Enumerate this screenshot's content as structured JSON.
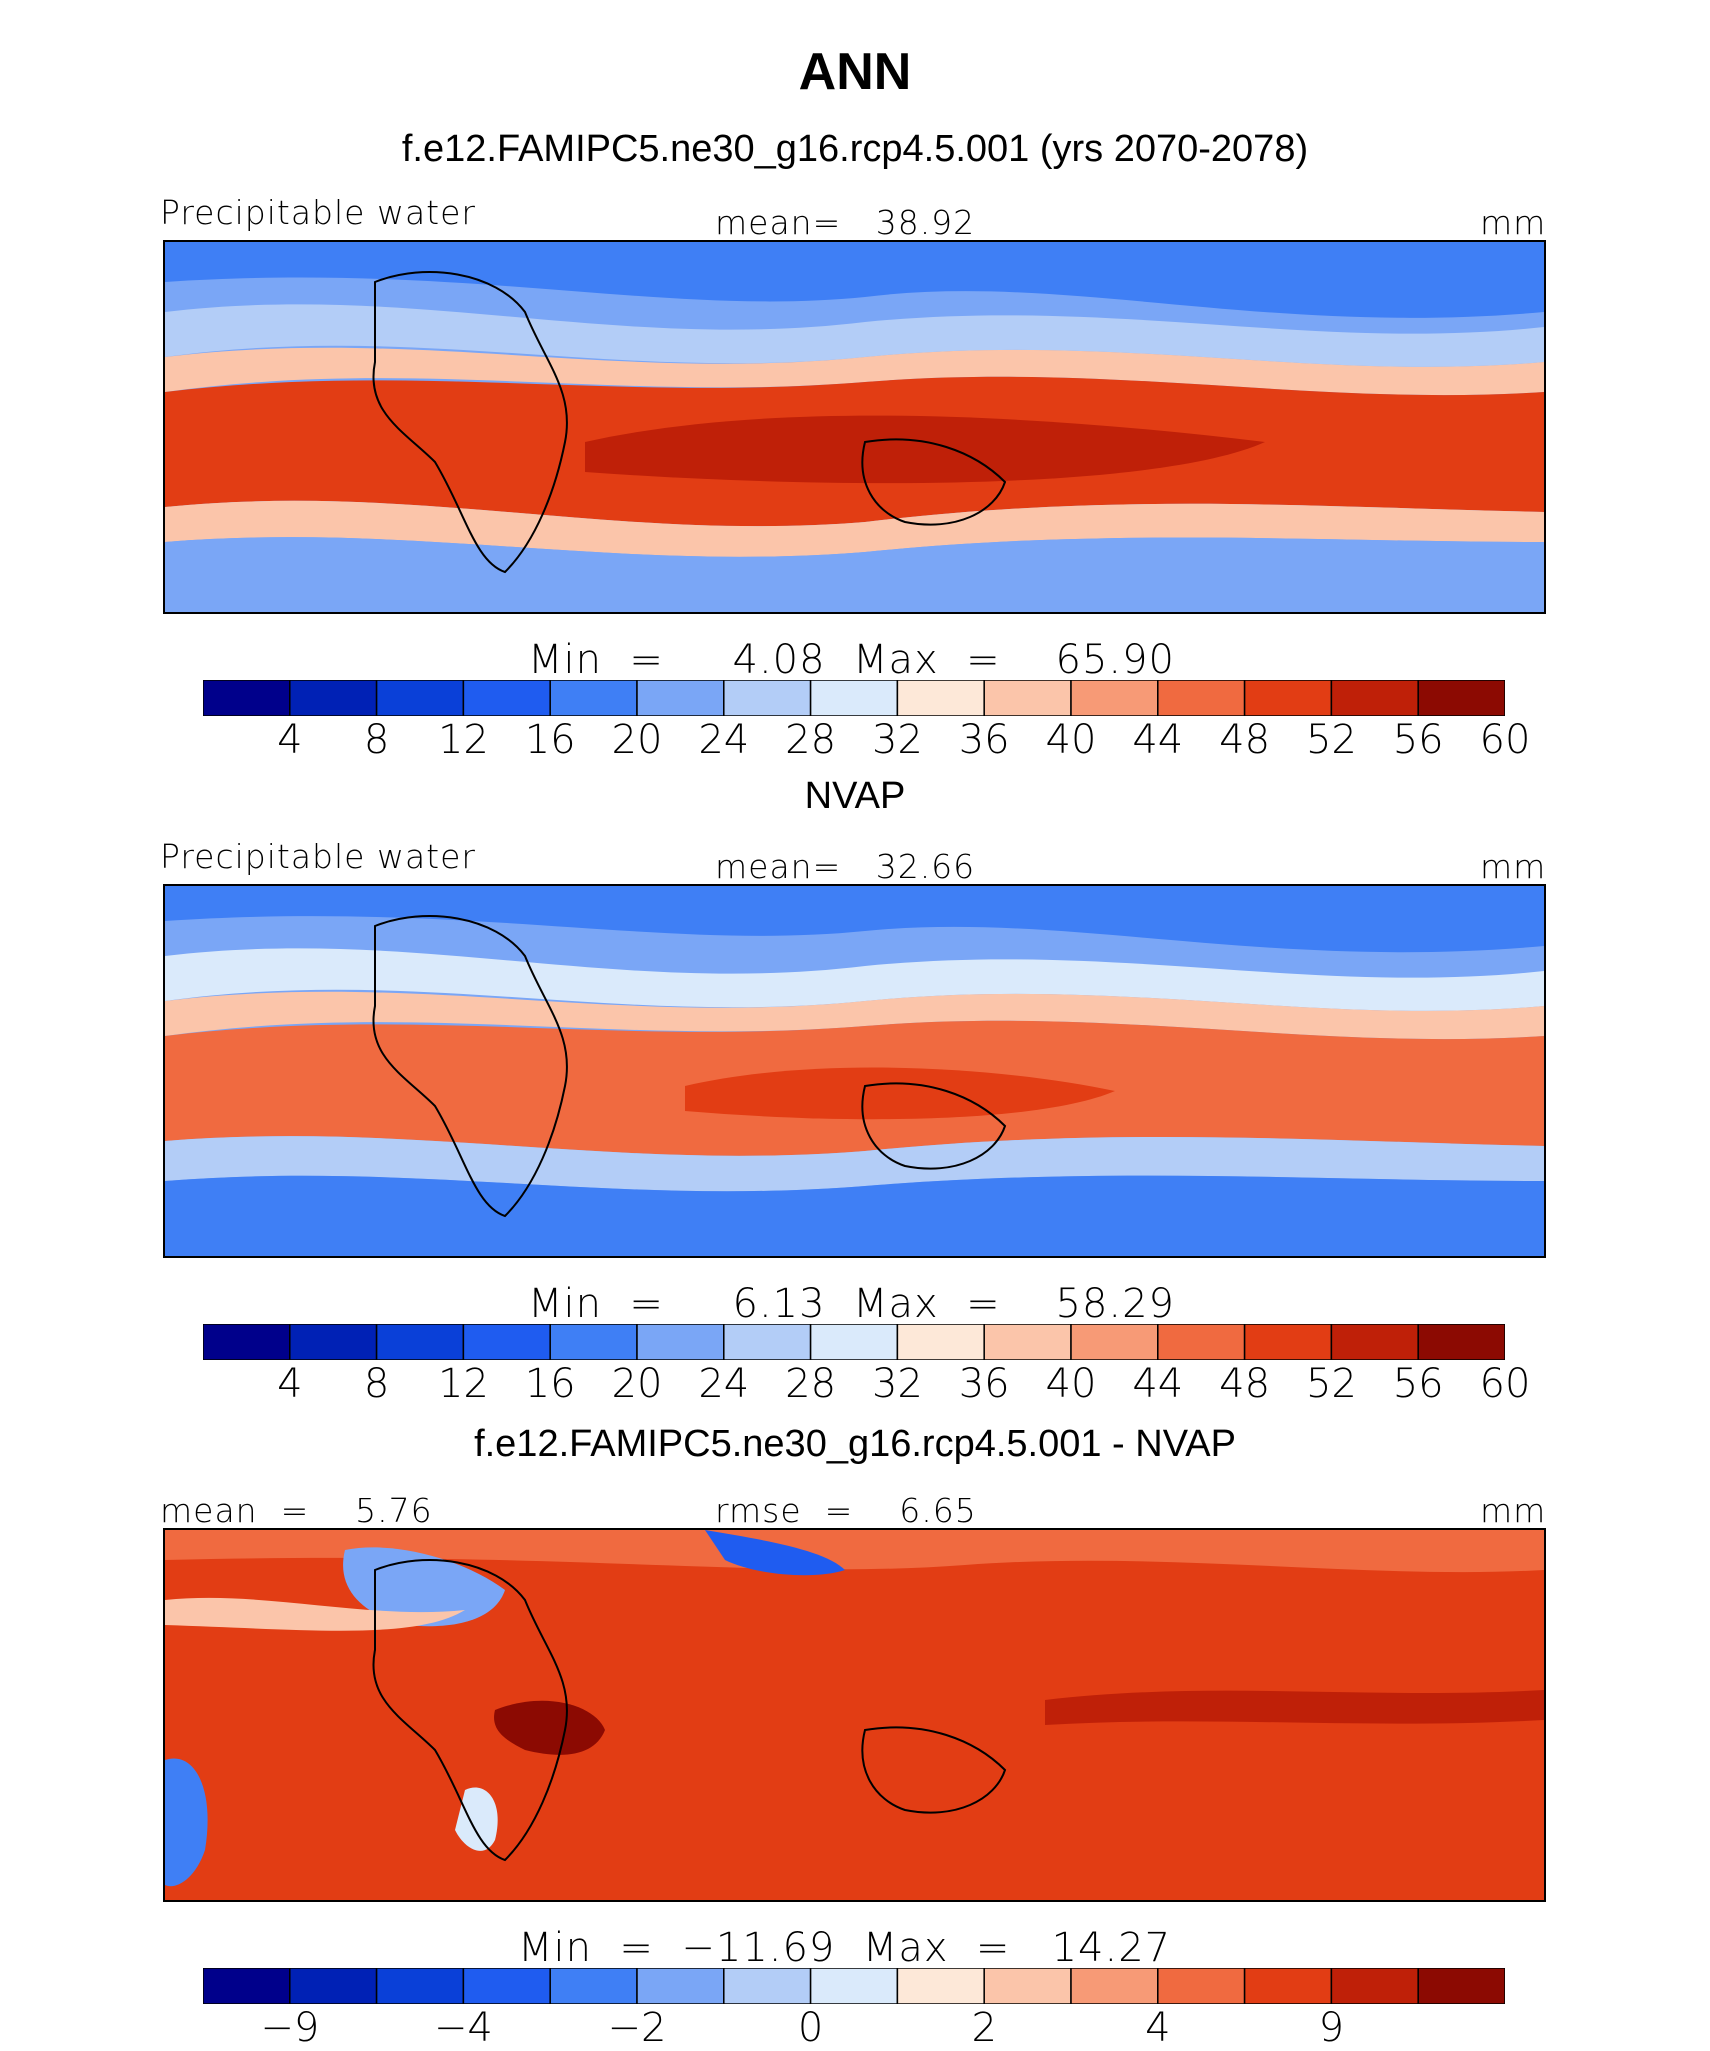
{
  "title": "ANN",
  "units": "mm",
  "colors": [
    "#00008b",
    "#0021b5",
    "#0a40d8",
    "#1f5cf0",
    "#3f7ff5",
    "#7aa6f6",
    "#b3cdf7",
    "#daeafb",
    "#fde8d8",
    "#fbc5aa",
    "#f79a76",
    "#f06a40",
    "#e23d14",
    "#bf2008",
    "#8c0a02"
  ],
  "panels": [
    {
      "subtitle": "f.e12.FAMIPC5.ne30_g16.rcp4.5.001 (yrs 2070-2078)",
      "left_label": "Precipitable water",
      "center_label": "mean=   38.92",
      "minmax": "Min  =     4.08  Max  =    65.90",
      "ticks": [
        "4",
        "8",
        "12",
        "16",
        "20",
        "24",
        "28",
        "32",
        "36",
        "40",
        "44",
        "48",
        "52",
        "56",
        "60"
      ]
    },
    {
      "subtitle": "NVAP",
      "left_label": "Precipitable water",
      "center_label": "mean=   32.66",
      "minmax": "Min  =     6.13  Max  =    58.29",
      "ticks": [
        "4",
        "8",
        "12",
        "16",
        "20",
        "24",
        "28",
        "32",
        "36",
        "40",
        "44",
        "48",
        "52",
        "56",
        "60"
      ]
    },
    {
      "subtitle": "f.e12.FAMIPC5.ne30_g16.rcp4.5.001 - NVAP",
      "left_label": "mean  =    5.76",
      "center_label": "rmse  =    6.65",
      "minmax": "Min  =  −11.69  Max  =   14.27",
      "ticks": [
        "−9",
        "−4",
        "−2",
        "0",
        "2",
        "4",
        "9"
      ]
    }
  ],
  "chart_data": [
    {
      "type": "heatmap",
      "title": "f.e12.FAMIPC5.ne30_g16.rcp4.5.001 (yrs 2070-2078)",
      "variable": "Precipitable water",
      "units": "mm",
      "mean": 38.92,
      "min": 4.08,
      "max": 65.9,
      "levels": [
        4,
        8,
        12,
        16,
        20,
        24,
        28,
        32,
        36,
        40,
        44,
        48,
        52,
        56,
        60
      ]
    },
    {
      "type": "heatmap",
      "title": "NVAP",
      "variable": "Precipitable water",
      "units": "mm",
      "mean": 32.66,
      "min": 6.13,
      "max": 58.29,
      "levels": [
        4,
        8,
        12,
        16,
        20,
        24,
        28,
        32,
        36,
        40,
        44,
        48,
        52,
        56,
        60
      ]
    },
    {
      "type": "heatmap",
      "title": "f.e12.FAMIPC5.ne30_g16.rcp4.5.001 - NVAP",
      "units": "mm",
      "mean": 5.76,
      "rmse": 6.65,
      "min": -11.69,
      "max": 14.27,
      "levels": [
        -9,
        -4,
        -2,
        0,
        2,
        4,
        9
      ]
    }
  ]
}
